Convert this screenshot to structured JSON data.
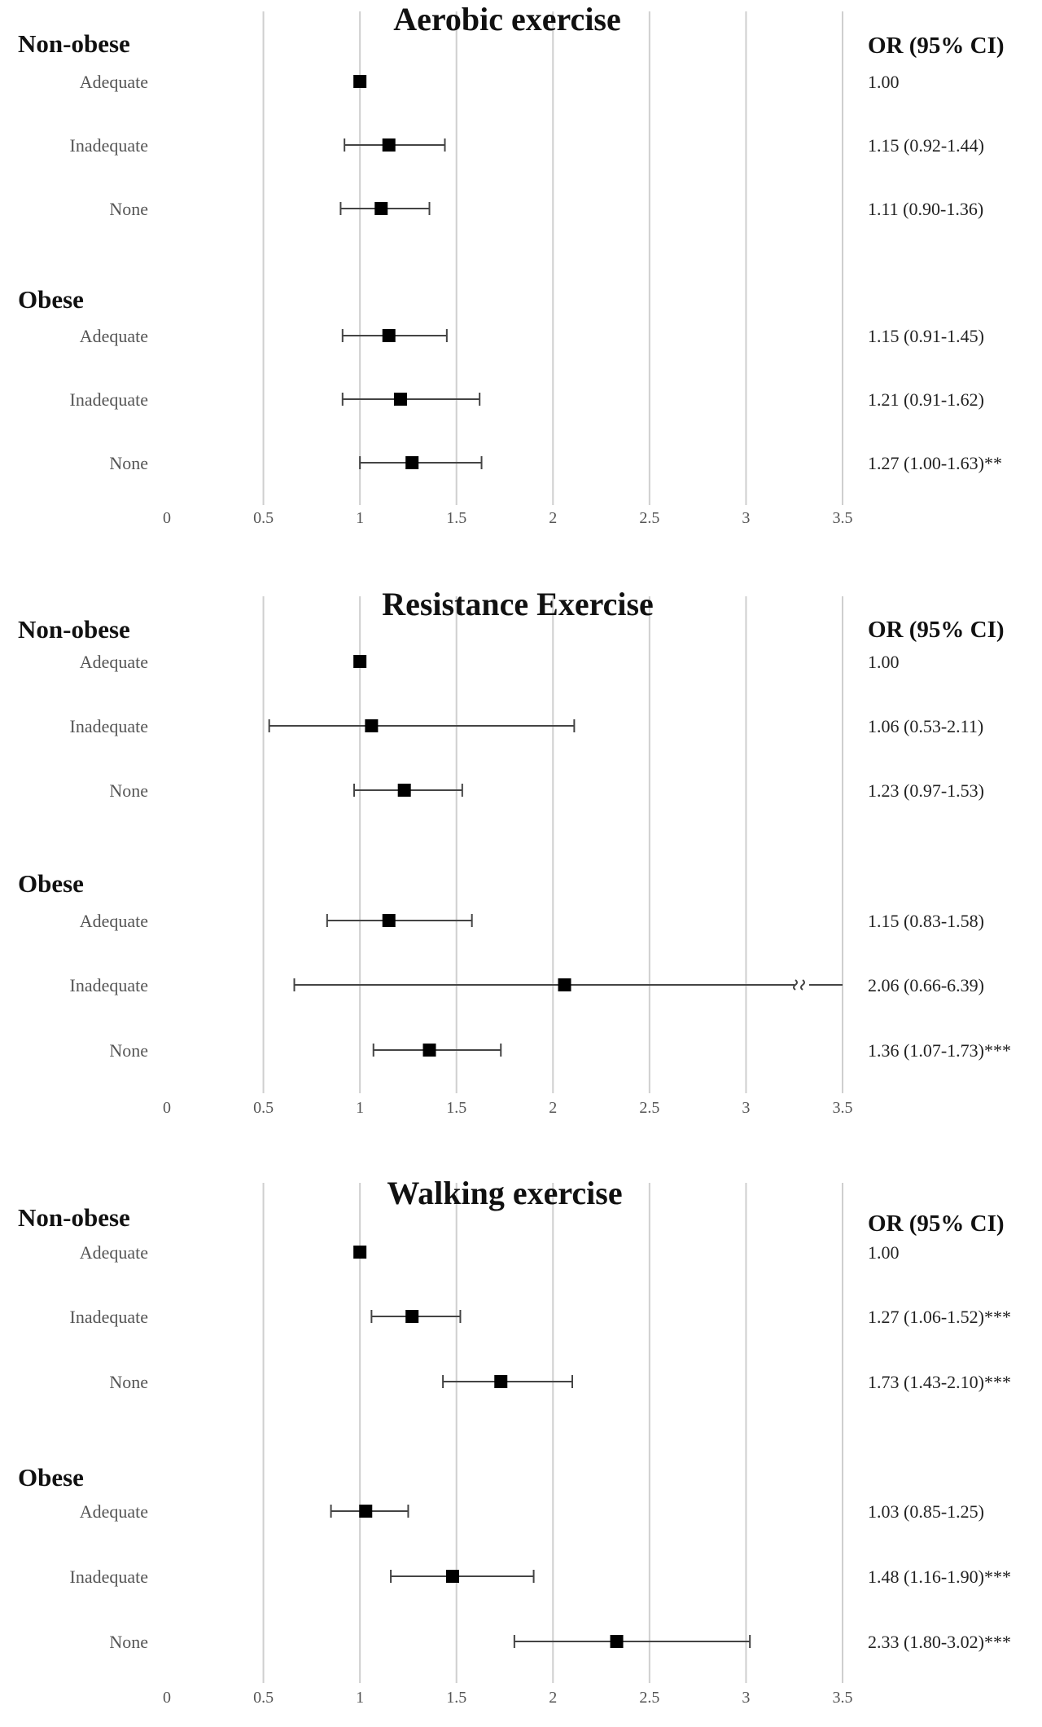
{
  "chart_data": [
    {
      "type": "forest",
      "title": "Aerobic exercise",
      "or_header": "OR (95% CI)",
      "xlim": [
        0,
        3.5
      ],
      "ticks": [
        0,
        0.5,
        1,
        1.5,
        2,
        2.5,
        3,
        3.5
      ],
      "tick_labels": [
        "0",
        "0.5",
        "1",
        "1.5",
        "2",
        "2.5",
        "3",
        "3.5"
      ],
      "groups": [
        {
          "name": "Non-obese",
          "rows": [
            {
              "label": "Adequate",
              "or": 1.0,
              "lo": null,
              "hi": null,
              "text": "1.00"
            },
            {
              "label": "Inadequate",
              "or": 1.15,
              "lo": 0.92,
              "hi": 1.44,
              "text": "1.15 (0.92-1.44)"
            },
            {
              "label": "None",
              "or": 1.11,
              "lo": 0.9,
              "hi": 1.36,
              "text": "1.11 (0.90-1.36)"
            }
          ]
        },
        {
          "name": "Obese",
          "rows": [
            {
              "label": "Adequate",
              "or": 1.15,
              "lo": 0.91,
              "hi": 1.45,
              "text": "1.15 (0.91-1.45)"
            },
            {
              "label": "Inadequate",
              "or": 1.21,
              "lo": 0.91,
              "hi": 1.62,
              "text": "1.21 (0.91-1.62)"
            },
            {
              "label": "None",
              "or": 1.27,
              "lo": 1.0,
              "hi": 1.63,
              "text": "1.27 (1.00-1.63)**"
            }
          ]
        }
      ]
    },
    {
      "type": "forest",
      "title": "Resistance Exercise",
      "or_header": "OR (95% CI)",
      "xlim": [
        0,
        3.5
      ],
      "ticks": [
        0,
        0.5,
        1,
        1.5,
        2,
        2.5,
        3,
        3.5
      ],
      "tick_labels": [
        "0",
        "0.5",
        "1",
        "1.5",
        "2",
        "2.5",
        "3",
        "3.5"
      ],
      "groups": [
        {
          "name": "Non-obese",
          "rows": [
            {
              "label": "Adequate",
              "or": 1.0,
              "lo": null,
              "hi": null,
              "text": "1.00"
            },
            {
              "label": "Inadequate",
              "or": 1.06,
              "lo": 0.53,
              "hi": 2.11,
              "text": "1.06 (0.53-2.11)"
            },
            {
              "label": "None",
              "or": 1.23,
              "lo": 0.97,
              "hi": 1.53,
              "text": "1.23 (0.97-1.53)"
            }
          ]
        },
        {
          "name": "Obese",
          "rows": [
            {
              "label": "Adequate",
              "or": 1.15,
              "lo": 0.83,
              "hi": 1.58,
              "text": "1.15 (0.83-1.58)"
            },
            {
              "label": "Inadequate",
              "or": 2.06,
              "lo": 0.66,
              "hi": 6.39,
              "text": "2.06 (0.66-6.39)",
              "truncated": true
            },
            {
              "label": "None",
              "or": 1.36,
              "lo": 1.07,
              "hi": 1.73,
              "text": "1.36 (1.07-1.73)***"
            }
          ]
        }
      ]
    },
    {
      "type": "forest",
      "title": "Walking exercise",
      "or_header": "OR (95% CI)",
      "xlim": [
        0,
        3.5
      ],
      "ticks": [
        0,
        0.5,
        1,
        1.5,
        2,
        2.5,
        3,
        3.5
      ],
      "tick_labels": [
        "0",
        "0.5",
        "1",
        "1.5",
        "2",
        "2.5",
        "3",
        "3.5"
      ],
      "groups": [
        {
          "name": "Non-obese",
          "rows": [
            {
              "label": "Adequate",
              "or": 1.0,
              "lo": null,
              "hi": null,
              "text": "1.00"
            },
            {
              "label": "Inadequate",
              "or": 1.27,
              "lo": 1.06,
              "hi": 1.52,
              "text": "1.27 (1.06-1.52)***"
            },
            {
              "label": "None",
              "or": 1.73,
              "lo": 1.43,
              "hi": 2.1,
              "text": "1.73 (1.43-2.10)***"
            }
          ]
        },
        {
          "name": "Obese",
          "rows": [
            {
              "label": "Adequate",
              "or": 1.03,
              "lo": 0.85,
              "hi": 1.25,
              "text": "1.03 (0.85-1.25)"
            },
            {
              "label": "Inadequate",
              "or": 1.48,
              "lo": 1.16,
              "hi": 1.9,
              "text": "1.48 (1.16-1.90)***"
            },
            {
              "label": "None",
              "or": 2.33,
              "lo": 1.8,
              "hi": 3.02,
              "text": "2.33 (1.80-3.02)***"
            }
          ]
        }
      ]
    }
  ]
}
